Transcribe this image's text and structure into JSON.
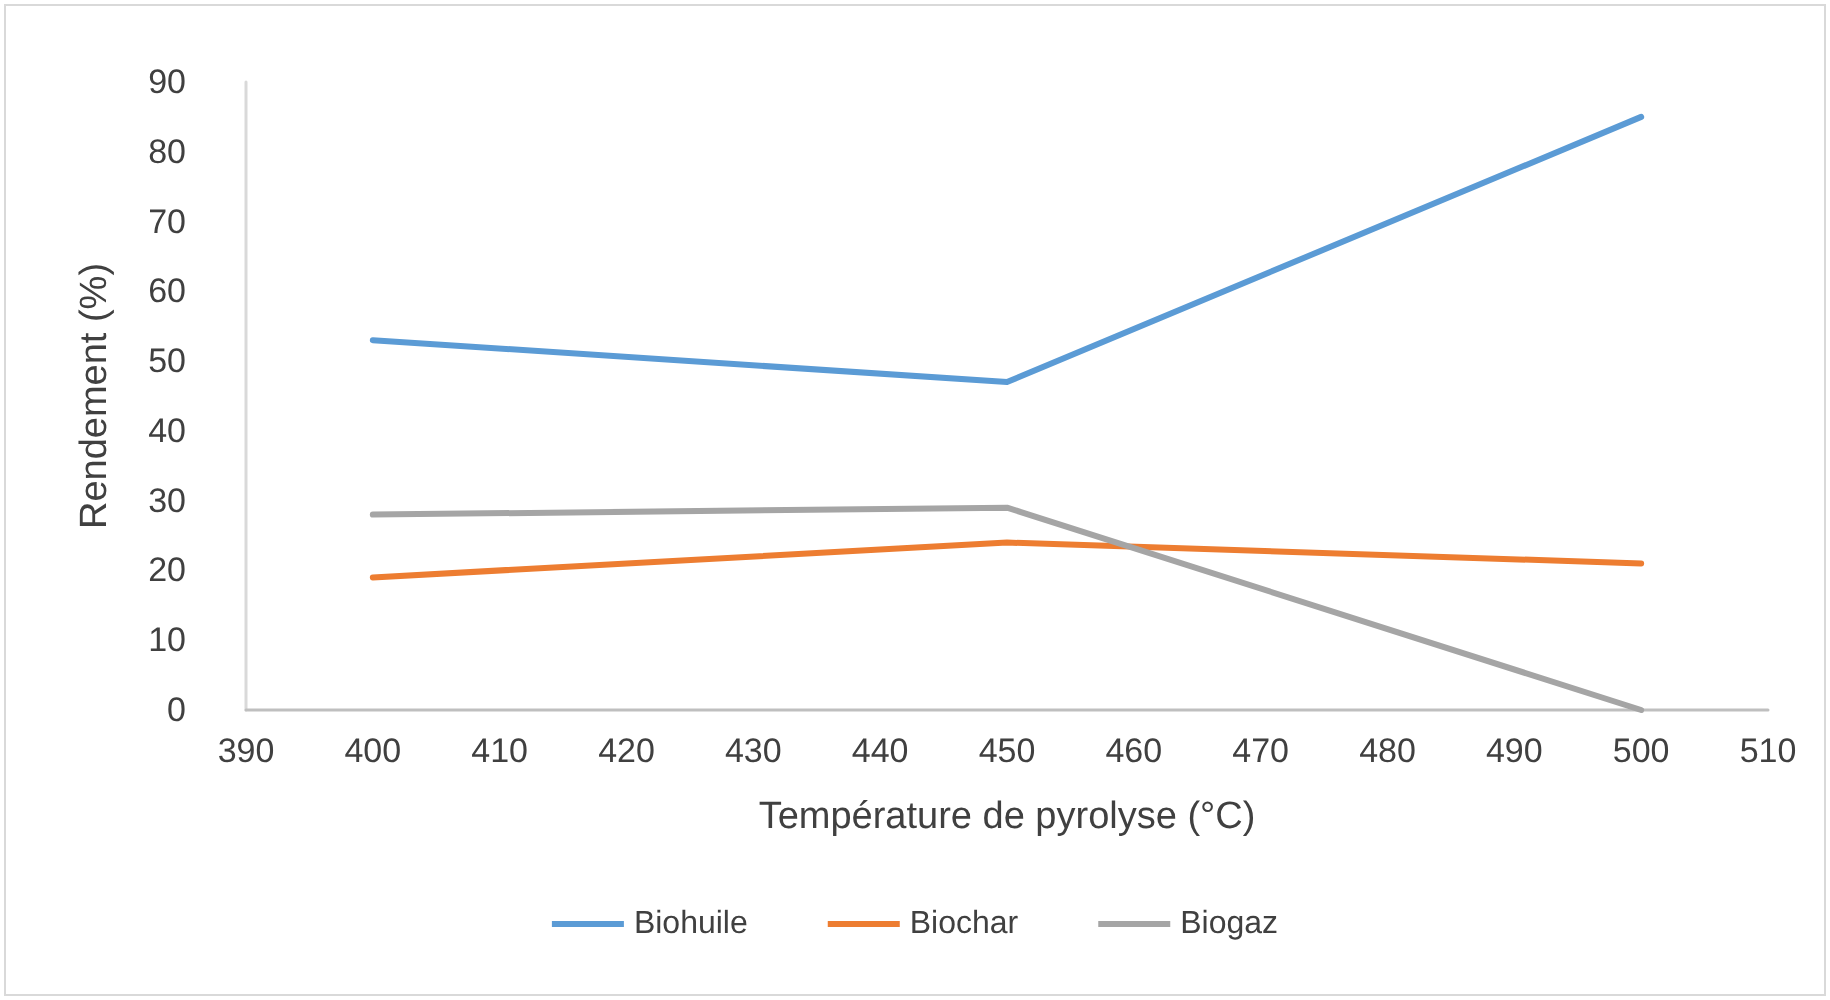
{
  "chart_data": {
    "type": "line",
    "xlabel": "Température de pyrolyse (°C)",
    "ylabel": "Rendement (%)",
    "x": [
      400,
      450,
      500
    ],
    "series": [
      {
        "name": "Biohuile",
        "color": "#5b9bd5",
        "values": [
          53,
          47,
          85
        ]
      },
      {
        "name": "Biochar",
        "color": "#ed7d31",
        "values": [
          19,
          24,
          21
        ]
      },
      {
        "name": "Biogaz",
        "color": "#a5a5a5",
        "values": [
          28,
          29,
          0
        ]
      }
    ],
    "xlim": [
      390,
      510
    ],
    "xticks": [
      390,
      400,
      410,
      420,
      430,
      440,
      450,
      460,
      470,
      480,
      490,
      500,
      510
    ],
    "ylim": [
      0,
      90
    ],
    "yticks": [
      0,
      10,
      20,
      30,
      40,
      50,
      60,
      70,
      80,
      90
    ],
    "grid": false,
    "legend": "bottom",
    "marker": "none",
    "line_style": "solid"
  }
}
